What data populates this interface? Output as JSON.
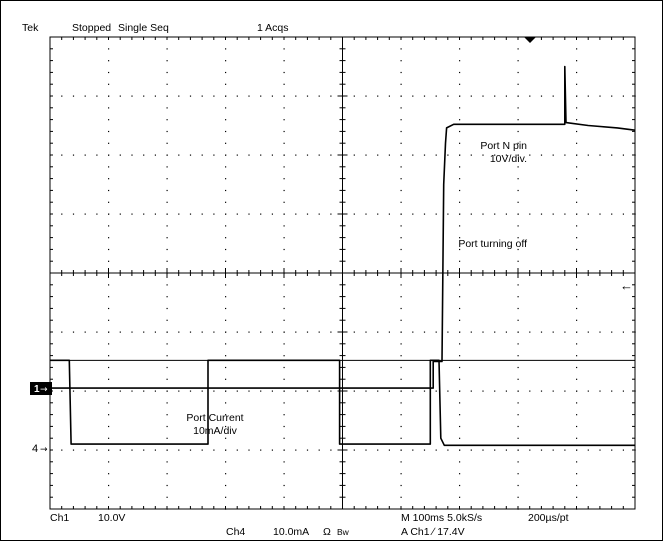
{
  "header": {
    "brand": "Tek",
    "state": "Stopped",
    "mode": "Single Seq",
    "acqs": "1 Acqs"
  },
  "markers": {
    "ch1": "1",
    "ch4": "4",
    "arrow": "→",
    "trigger_level_arrow": "←"
  },
  "annotations": {
    "port_n_pin_1": "Port N pin",
    "port_n_pin_2": "10V/div.",
    "port_turning_off": "Port turning off",
    "port_current_1": "Port Current",
    "port_current_2": "10mA/div"
  },
  "footer": {
    "ch1_label": "Ch1",
    "ch1_scale": "10.0V",
    "ch4_label": "Ch4",
    "ch4_scale": "10.0mA",
    "ch4_coupling": "Ω",
    "ch4_bw": "Bw",
    "timebase": "M 100ms 5.0kS/s",
    "trigger": "A  Ch1  ∕  17.4V",
    "resolution": "200µs/pt"
  },
  "chart_data": {
    "type": "line",
    "title": "",
    "xlabel": "",
    "ylabel": "",
    "x_unit": "div",
    "y_unit": "div",
    "xlim": [
      0,
      10
    ],
    "ylim": [
      -4,
      4
    ],
    "grid": true,
    "series": [
      {
        "name": "Ch1",
        "color": "#000000",
        "points": [
          [
            0,
            -1.95
          ],
          [
            6.55,
            -1.95
          ],
          [
            6.55,
            -1.5
          ],
          [
            6.7,
            -1.5
          ],
          [
            6.73,
            1.5
          ],
          [
            6.76,
            2.2
          ],
          [
            6.78,
            2.46
          ],
          [
            6.9,
            2.52
          ],
          [
            7.5,
            2.52
          ],
          [
            8.5,
            2.52
          ],
          [
            8.8,
            2.52
          ],
          [
            8.8,
            3.5
          ],
          [
            8.82,
            2.55
          ],
          [
            9.2,
            2.5
          ],
          [
            9.7,
            2.46
          ],
          [
            10,
            2.42
          ]
        ]
      },
      {
        "name": "Ch4",
        "color": "#000000",
        "points": [
          [
            0,
            -1.48
          ],
          [
            0.33,
            -1.48
          ],
          [
            0.36,
            -2.9
          ],
          [
            2.7,
            -2.9
          ],
          [
            2.7,
            -1.48
          ],
          [
            4.95,
            -1.48
          ],
          [
            4.95,
            -2.9
          ],
          [
            6.5,
            -2.9
          ],
          [
            6.5,
            -1.48
          ],
          [
            6.65,
            -1.48
          ],
          [
            6.68,
            -2.8
          ],
          [
            6.74,
            -2.92
          ],
          [
            10,
            -2.92
          ]
        ]
      }
    ]
  }
}
